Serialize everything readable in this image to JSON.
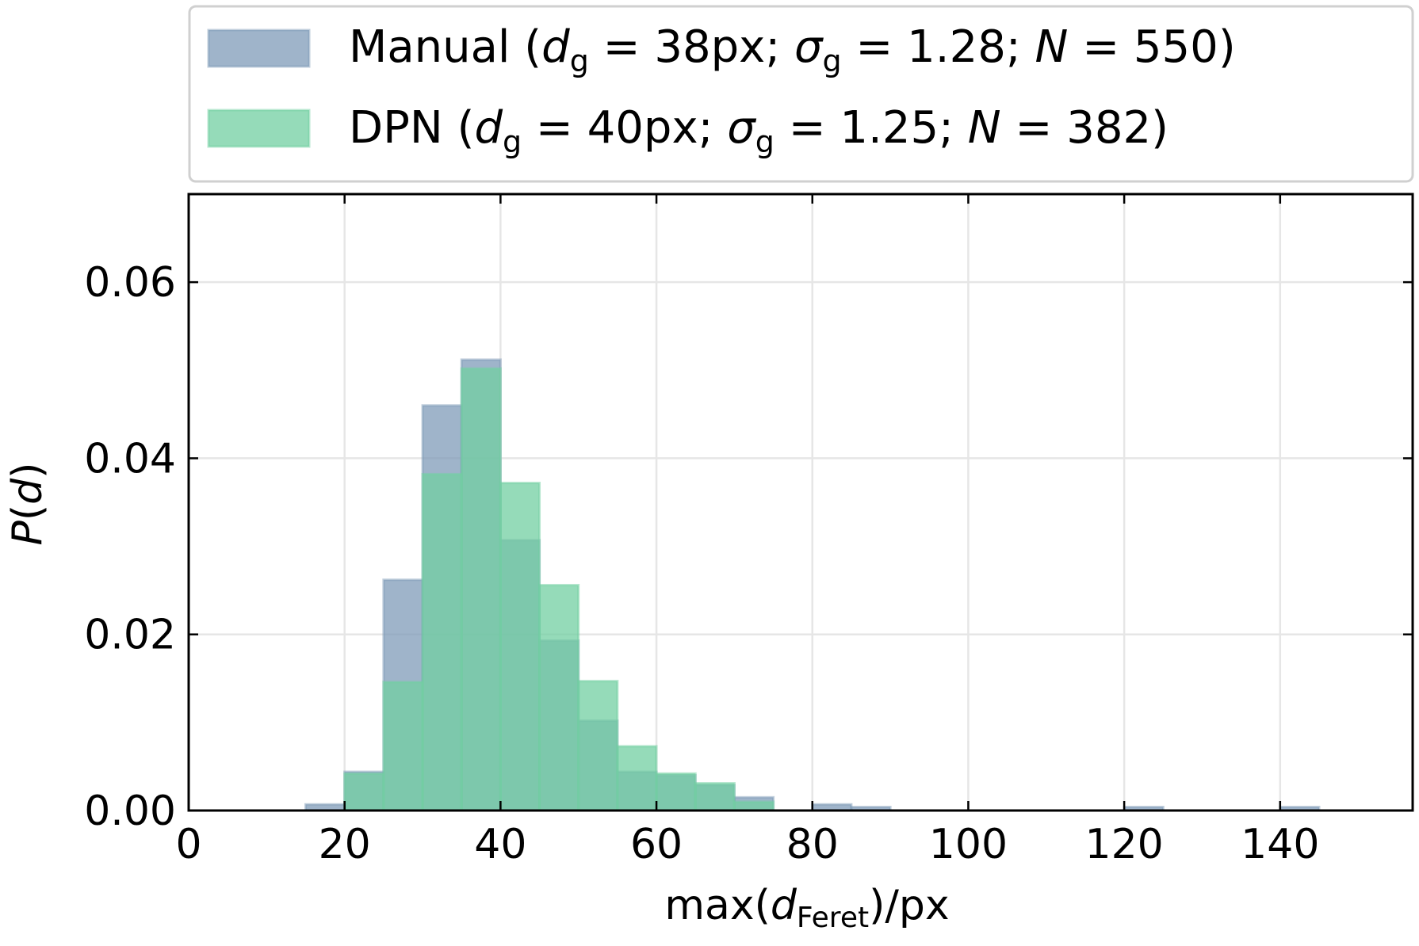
{
  "chart_data": {
    "type": "bar",
    "title": "",
    "xlabel": {
      "prefix": "max(",
      "var": "d",
      "sub": "Feret",
      "suffix": ")/px"
    },
    "ylabel": {
      "var": "P",
      "arg": "d"
    },
    "xlim": [
      0,
      157
    ],
    "ylim": [
      0,
      0.07
    ],
    "grid": true,
    "legend_position": "top",
    "bin_width": 5,
    "bin_edges": [
      15,
      20,
      25,
      30,
      35,
      40,
      45,
      50,
      55,
      60,
      65,
      70,
      75,
      80,
      85,
      90,
      95,
      100,
      105,
      110,
      115,
      120,
      125,
      130,
      135,
      140,
      145
    ],
    "xticks": [
      "0",
      "20",
      "40",
      "60",
      "80",
      "100",
      "120",
      "140"
    ],
    "xtick_values": [
      0,
      20,
      40,
      60,
      80,
      100,
      120,
      140
    ],
    "yticks": [
      "0.00",
      "0.02",
      "0.04",
      "0.06"
    ],
    "ytick_values": [
      0,
      0.02,
      0.04,
      0.06
    ],
    "series": [
      {
        "name": "Manual",
        "legend": {
          "label": "Manual",
          "dg": "38px",
          "sigma": "1.28",
          "N": "550"
        },
        "color": "#7f9bb8",
        "values": [
          0.0007,
          0.0044,
          0.0262,
          0.046,
          0.0512,
          0.0307,
          0.0193,
          0.0102,
          0.0044,
          0.004,
          0.0029,
          0.0015,
          0,
          0.0007,
          0.0004,
          0,
          0,
          0,
          0,
          0,
          0,
          0.0004,
          0,
          0,
          0,
          0.0004
        ]
      },
      {
        "name": "DPN",
        "legend": {
          "label": "DPN",
          "dg": "40px",
          "sigma": "1.25",
          "N": "382"
        },
        "color": "#72cfa1",
        "values": [
          0,
          0.0042,
          0.0146,
          0.0382,
          0.0502,
          0.0372,
          0.0256,
          0.0147,
          0.0073,
          0.0042,
          0.0031,
          0.001,
          0,
          0,
          0,
          0,
          0,
          0,
          0,
          0,
          0,
          0,
          0,
          0,
          0,
          0
        ]
      }
    ]
  }
}
